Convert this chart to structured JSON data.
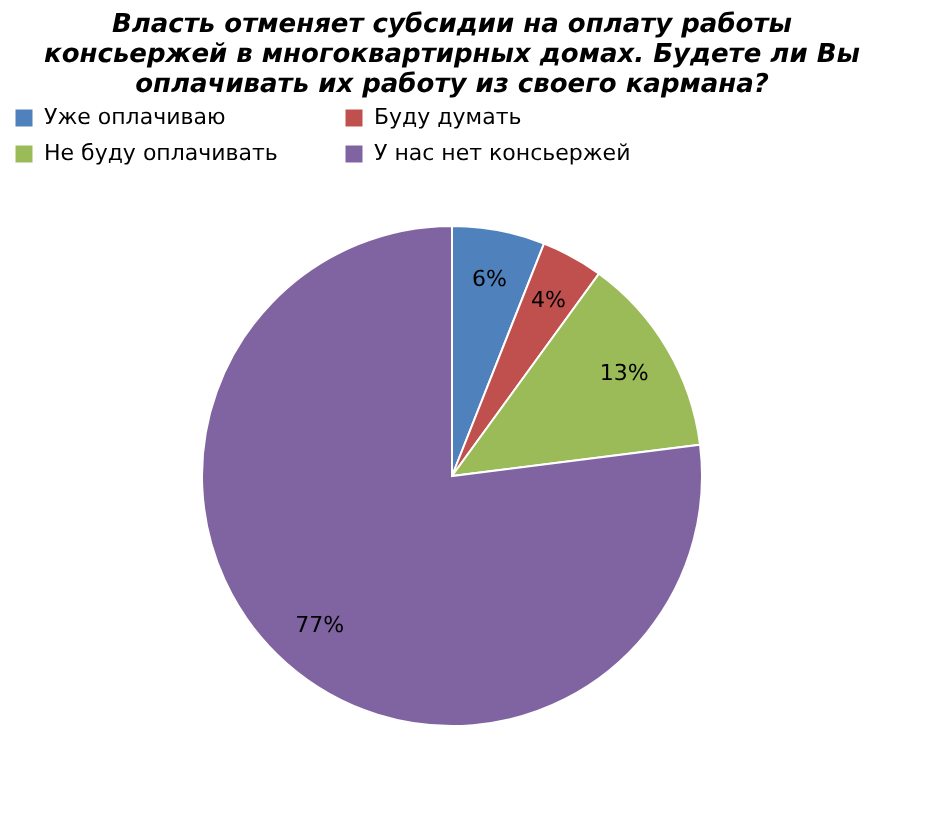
{
  "chart_data": {
    "type": "pie",
    "title": "Власть отменяет субсидии на оплату работы консьержей в многоквартирных домах. Будете ли Вы оплачивать их работу из своего кармана?",
    "categories": [
      "Уже оплачиваю",
      "Буду думать",
      "Не буду оплачивать",
      "У нас нет консьержей"
    ],
    "values": [
      6,
      4,
      13,
      77
    ],
    "colors": [
      "#4f81bd",
      "#c0504d",
      "#9bbb59",
      "#8064a2"
    ],
    "value_labels": [
      "6%",
      "4%",
      "13%",
      "77%"
    ],
    "legend": "top"
  }
}
